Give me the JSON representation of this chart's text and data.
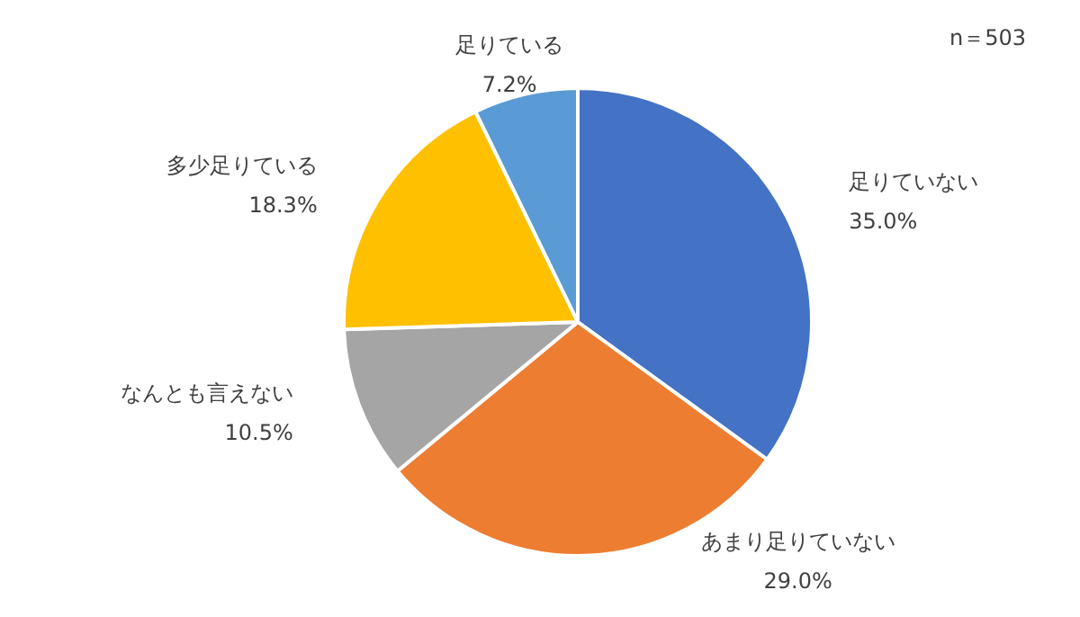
{
  "chart_data": {
    "type": "pie",
    "categories": [
      "足りていない",
      "あまり足りていない",
      "なんとも言えない",
      "多少足りている",
      "足りている"
    ],
    "values": [
      35.0,
      29.0,
      10.5,
      18.3,
      7.2
    ],
    "value_labels": [
      "35.0%",
      "29.0%",
      "10.5%",
      "18.3%",
      "7.2%"
    ],
    "colors": [
      "#4472c4",
      "#ed7d31",
      "#a5a5a5",
      "#ffc000",
      "#5b9bd5"
    ],
    "legend": false,
    "annotations": [
      "n＝503"
    ]
  }
}
